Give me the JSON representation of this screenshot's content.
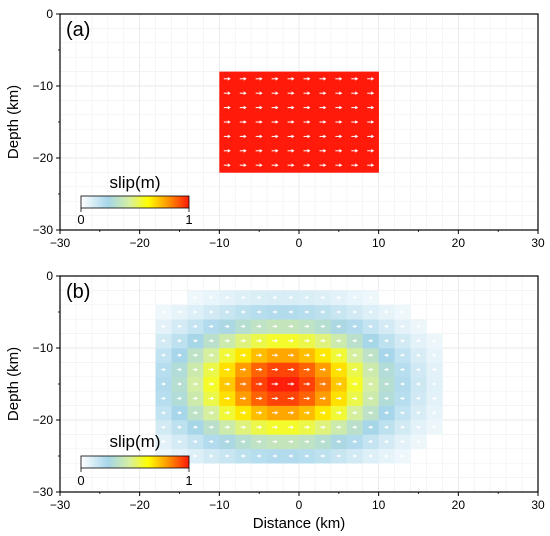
{
  "chart_data": [
    {
      "type": "heatmap",
      "panel_label": "(a)",
      "ylabel": "Depth (km)",
      "xlabel": "",
      "xlim": [
        -30,
        30
      ],
      "ylim": [
        -30,
        0
      ],
      "xticks": [
        "−30",
        "−20",
        "−10",
        "0",
        "10",
        "20",
        "30"
      ],
      "yticks": [
        "0",
        "−10",
        "−20",
        "−30"
      ],
      "grid": true,
      "slip_model": "uniform",
      "fault_extent": {
        "x": [
          -10,
          10
        ],
        "depth": [
          -22,
          -8
        ]
      },
      "cell_size_km": [
        2,
        2
      ],
      "slip_max_m": 1.0,
      "colorbar": {
        "label": "slip(m)",
        "min_label": "0",
        "max_label": "1",
        "range": [
          0,
          1
        ],
        "placement": "bottom-left"
      }
    },
    {
      "type": "heatmap",
      "panel_label": "(b)",
      "ylabel": "Depth (km)",
      "xlabel": "Distance (km)",
      "xlim": [
        -30,
        30
      ],
      "ylim": [
        -30,
        0
      ],
      "xticks": [
        "−30",
        "−20",
        "−10",
        "0",
        "10",
        "20",
        "30"
      ],
      "yticks": [
        "0",
        "−10",
        "−20",
        "−30"
      ],
      "grid": true,
      "slip_model": "smooth",
      "fault_extent": {
        "x": [
          -18,
          18
        ],
        "depth": [
          -26,
          -2
        ]
      },
      "peak_center": {
        "x": -2,
        "depth": -15
      },
      "cell_size_km": [
        2,
        2
      ],
      "slip_max_m": 1.0,
      "colorbar": {
        "label": "slip(m)",
        "min_label": "0",
        "max_label": "1",
        "range": [
          0,
          1
        ],
        "placement": "bottom-left"
      }
    }
  ]
}
